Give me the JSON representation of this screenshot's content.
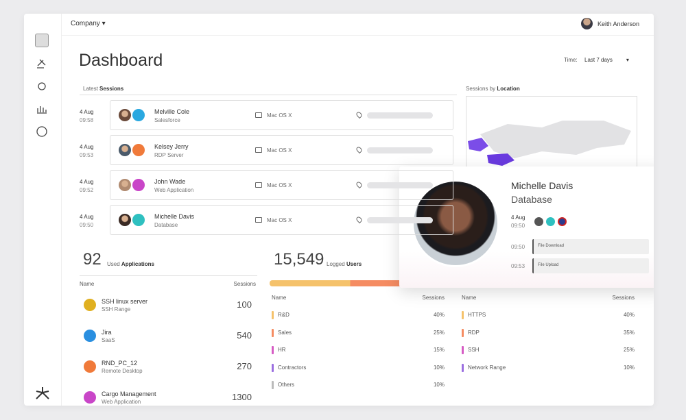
{
  "header": {
    "company": "Company",
    "user": "Keith Anderson"
  },
  "title": "Dashboard",
  "time_filter": {
    "label": "Time:",
    "value": "Last 7 days"
  },
  "latest_sessions": {
    "title_prefix": "Latest",
    "title_bold": "Sessions",
    "rows": [
      {
        "date": "4 Aug",
        "time": "09:58",
        "name": "Melville Cole",
        "app": "Salesforce",
        "os": "Mac OS X"
      },
      {
        "date": "4 Aug",
        "time": "09:53",
        "name": "Kelsey Jerry",
        "app": "RDP Server",
        "os": "Mac OS X"
      },
      {
        "date": "4 Aug",
        "time": "09:52",
        "name": "John Wade",
        "app": "Web Application",
        "os": "Mac OS X"
      },
      {
        "date": "4 Aug",
        "time": "09:50",
        "name": "Michelle Davis",
        "app": "Database",
        "os": "Mac OS X"
      }
    ]
  },
  "location": {
    "title_prefix": "Sessions by",
    "title_bold": "Location"
  },
  "applications": {
    "count": "92",
    "label_prefix": "Used",
    "label_bold": "Applications",
    "columns": [
      "Name",
      "Sessions"
    ],
    "rows": [
      {
        "name": "SSH linux server",
        "type": "SSH Range",
        "sessions": "100"
      },
      {
        "name": "Jira",
        "type": "SaaS",
        "sessions": "540"
      },
      {
        "name": "RND_PC_12",
        "type": "Remote Desktop",
        "sessions": "270"
      },
      {
        "name": "Cargo Management",
        "type": "Web Application",
        "sessions": "1300"
      }
    ]
  },
  "users": {
    "count": "15,549",
    "label_prefix": "Logged",
    "label_bold": "Users",
    "groups": {
      "columns": [
        "Name",
        "Sessions"
      ],
      "rows": [
        [
          "R&D",
          "40%"
        ],
        [
          "Sales",
          "25%"
        ],
        [
          "HR",
          "15%"
        ],
        [
          "Contractors",
          "10%"
        ],
        [
          "Others",
          "10%"
        ]
      ]
    },
    "protocols": {
      "columns": [
        "Name",
        "Sessions"
      ],
      "rows": [
        [
          "HTTPS",
          "40%"
        ],
        [
          "RDP",
          "35%"
        ],
        [
          "SSH",
          "25%"
        ],
        [
          "Network Range",
          "10%"
        ]
      ]
    }
  },
  "profile": {
    "name": "Michelle Davis",
    "app": "Database",
    "date": "4 Aug",
    "time": "09:50",
    "events": [
      {
        "time": "09:50",
        "action": "File Download"
      },
      {
        "time": "09:53",
        "action": "File Upload"
      }
    ]
  }
}
